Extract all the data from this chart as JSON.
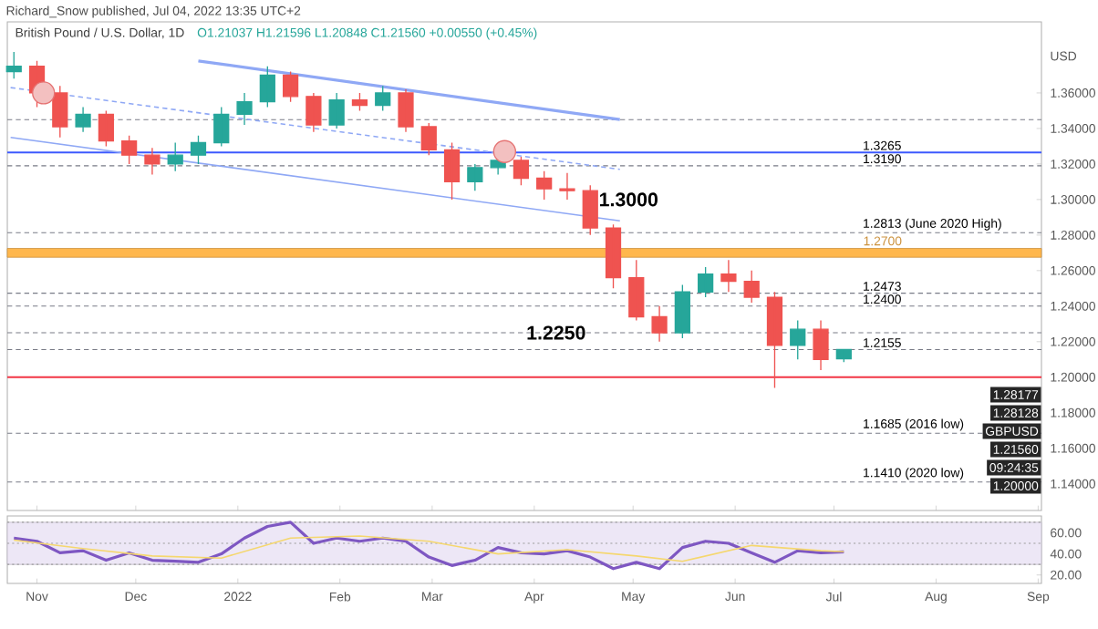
{
  "chart_data": [
    {
      "type": "candlestick",
      "title": "British Pound / U.S. Dollar, 1D",
      "subtitle": "O1.21037 H1.21596 L1.20848 C1.21560 +0.00550 (+0.45%)",
      "ylabel": "USD",
      "annotations": [
        "Richard_Snow published, Jul 04, 2022 13:35 UTC+2",
        {
          "text": "1.2250",
          "x": "2022-03-20",
          "y": 1.225
        },
        {
          "text": "1.3000",
          "x": "2022-04-11",
          "y": 1.3
        },
        "1.28177",
        "1.28128",
        "GBPUSD",
        "1.21560",
        "09:24:35",
        "1.20000"
      ],
      "x": [
        "2021-10-25",
        "2021-11-01",
        "2021-11-08",
        "2021-11-15",
        "2021-11-22",
        "2021-11-29",
        "2021-12-06",
        "2021-12-13",
        "2021-12-20",
        "2021-12-27",
        "2022-01-03",
        "2022-01-10",
        "2022-01-17",
        "2022-01-24",
        "2022-01-31",
        "2022-02-07",
        "2022-02-14",
        "2022-02-21",
        "2022-02-28",
        "2022-03-07",
        "2022-03-14",
        "2022-03-21",
        "2022-03-28",
        "2022-04-04",
        "2022-04-11",
        "2022-04-18",
        "2022-04-25",
        "2022-05-02",
        "2022-05-09",
        "2022-05-16",
        "2022-05-23",
        "2022-05-30",
        "2022-06-06",
        "2022-06-13",
        "2022-06-20",
        "2022-06-27",
        "2022-07-04"
      ],
      "ohlc": [
        [
          1.372,
          1.383,
          1.368,
          1.375
        ],
        [
          1.375,
          1.378,
          1.352,
          1.36
        ],
        [
          1.36,
          1.364,
          1.335,
          1.341
        ],
        [
          1.341,
          1.352,
          1.338,
          1.348
        ],
        [
          1.348,
          1.35,
          1.33,
          1.333
        ],
        [
          1.333,
          1.336,
          1.32,
          1.325
        ],
        [
          1.325,
          1.329,
          1.314,
          1.32
        ],
        [
          1.32,
          1.332,
          1.316,
          1.325
        ],
        [
          1.325,
          1.336,
          1.32,
          1.332
        ],
        [
          1.332,
          1.352,
          1.33,
          1.348
        ],
        [
          1.348,
          1.36,
          1.342,
          1.355
        ],
        [
          1.355,
          1.375,
          1.352,
          1.37
        ],
        [
          1.37,
          1.372,
          1.355,
          1.358
        ],
        [
          1.358,
          1.36,
          1.338,
          1.342
        ],
        [
          1.342,
          1.36,
          1.34,
          1.356
        ],
        [
          1.356,
          1.36,
          1.35,
          1.353
        ],
        [
          1.353,
          1.364,
          1.35,
          1.36
        ],
        [
          1.36,
          1.362,
          1.338,
          1.341
        ],
        [
          1.341,
          1.343,
          1.325,
          1.328
        ],
        [
          1.328,
          1.332,
          1.3,
          1.31
        ],
        [
          1.31,
          1.32,
          1.305,
          1.318
        ],
        [
          1.318,
          1.327,
          1.314,
          1.322
        ],
        [
          1.322,
          1.324,
          1.308,
          1.312
        ],
        [
          1.312,
          1.316,
          1.3,
          1.306
        ],
        [
          1.306,
          1.315,
          1.3,
          1.305
        ],
        [
          1.305,
          1.308,
          1.28,
          1.284
        ],
        [
          1.284,
          1.286,
          1.25,
          1.256
        ],
        [
          1.256,
          1.266,
          1.232,
          1.234
        ],
        [
          1.234,
          1.24,
          1.22,
          1.225
        ],
        [
          1.225,
          1.252,
          1.222,
          1.248
        ],
        [
          1.248,
          1.262,
          1.245,
          1.258
        ],
        [
          1.258,
          1.266,
          1.248,
          1.254
        ],
        [
          1.254,
          1.26,
          1.242,
          1.245
        ],
        [
          1.245,
          1.248,
          1.194,
          1.218
        ],
        [
          1.218,
          1.232,
          1.21,
          1.227
        ],
        [
          1.227,
          1.232,
          1.204,
          1.21
        ],
        [
          1.21037,
          1.21596,
          1.20848,
          1.2156
        ]
      ],
      "series": [
        {
          "type": "line",
          "color": "#8fa8f5",
          "x": [
            "2021-12-20",
            "2022-04-27"
          ],
          "values": [
            1.378,
            1.345
          ]
        },
        {
          "type": "line",
          "color": "#8fa8f5",
          "x": [
            "2021-10-24",
            "2022-04-27"
          ],
          "values": [
            1.335,
            1.288
          ]
        },
        {
          "type": "line",
          "color": "#8fa8f5",
          "line_style": "dashed",
          "x": [
            "2021-10-24",
            "2022-04-27"
          ],
          "values": [
            1.363,
            1.317
          ]
        },
        {
          "type": "scatter",
          "color": "#e57373",
          "marker": "circle",
          "x": [
            "2021-11-03",
            "2022-03-23"
          ],
          "values": [
            1.36,
            1.327
          ]
        }
      ],
      "ref_lines": [
        {
          "axis": "y",
          "value": 1.345,
          "color": "#787b86",
          "line_style": "dashed"
        },
        {
          "axis": "y",
          "value": 1.3265,
          "label": "1.3265",
          "color": "#3d5afe",
          "line_style": "solid"
        },
        {
          "axis": "y",
          "value": 1.319,
          "label": "1.3190",
          "color": "#787b86",
          "line_style": "dashed"
        },
        {
          "axis": "y",
          "value": 1.2813,
          "label": "1.2813 (June 2020 High)",
          "color": "#787b86",
          "line_style": "dashed"
        },
        {
          "axis": "y",
          "value": 1.2473,
          "label": "1.2473",
          "color": "#787b86",
          "line_style": "dashed"
        },
        {
          "axis": "y",
          "value": 1.24,
          "label": "1.2400",
          "color": "#787b86",
          "line_style": "dashed"
        },
        {
          "axis": "y",
          "value": 1.225,
          "color": "#787b86",
          "line_style": "dashed"
        },
        {
          "axis": "y",
          "value": 1.2155,
          "label": "1.2155",
          "color": "#787b86",
          "line_style": "dashed"
        },
        {
          "axis": "y",
          "value": 1.2,
          "color": "#f23645",
          "line_style": "solid"
        },
        {
          "axis": "y",
          "value": 1.1685,
          "label": "1.1685 (2016 low)",
          "color": "#787b86",
          "line_style": "dashed"
        },
        {
          "axis": "y",
          "value": 1.141,
          "label": "1.1410 (2020 low)",
          "color": "#787b86",
          "line_style": "dashed"
        }
      ],
      "bands": [
        {
          "axis": "y",
          "from": 1.2675,
          "to": 1.2725,
          "label": "1.2700",
          "color": "#ffb74d"
        }
      ],
      "xlim": [
        "2021-10-23",
        "2022-09-02"
      ],
      "ylim": [
        1.125,
        1.4
      ],
      "xticks": [
        {
          "value": "2021-11-01",
          "label": null
        },
        {
          "value": "2021-12-01",
          "label": null
        },
        {
          "value": "2022-01-01",
          "label": null
        },
        {
          "value": "2022-02-01",
          "label": null
        },
        {
          "value": "2022-03-01",
          "label": null
        },
        {
          "value": "2022-04-01",
          "label": null
        },
        {
          "value": "2022-05-01",
          "label": null
        },
        {
          "value": "2022-06-01",
          "label": null
        },
        {
          "value": "2022-07-01",
          "label": null
        },
        {
          "value": "2022-08-01",
          "label": null
        },
        {
          "value": "2022-09-01",
          "label": null
        }
      ],
      "yticks": [
        {
          "value": 1.14,
          "label": "1.14000"
        },
        {
          "value": 1.16,
          "label": "1.16000"
        },
        {
          "value": 1.18,
          "label": "1.18000"
        },
        {
          "value": 1.2,
          "label": "1.20000"
        },
        {
          "value": 1.22,
          "label": "1.22000"
        },
        {
          "value": 1.24,
          "label": "1.24000"
        },
        {
          "value": 1.26,
          "label": "1.26000"
        },
        {
          "value": 1.28,
          "label": "1.28000"
        },
        {
          "value": 1.3,
          "label": "1.30000"
        },
        {
          "value": 1.32,
          "label": "1.32000"
        },
        {
          "value": 1.34,
          "label": "1.34000"
        },
        {
          "value": 1.36,
          "label": "1.36000"
        }
      ],
      "tick_labels": "y"
    },
    {
      "type": "line",
      "x": [
        "2021-10-25",
        "2021-11-01",
        "2021-11-08",
        "2021-11-15",
        "2021-11-22",
        "2021-11-29",
        "2021-12-06",
        "2021-12-13",
        "2021-12-20",
        "2021-12-27",
        "2022-01-03",
        "2022-01-10",
        "2022-01-17",
        "2022-01-24",
        "2022-01-31",
        "2022-02-07",
        "2022-02-14",
        "2022-02-21",
        "2022-02-28",
        "2022-03-07",
        "2022-03-14",
        "2022-03-21",
        "2022-03-28",
        "2022-04-04",
        "2022-04-11",
        "2022-04-18",
        "2022-04-25",
        "2022-05-02",
        "2022-05-09",
        "2022-05-16",
        "2022-05-23",
        "2022-05-30",
        "2022-06-06",
        "2022-06-13",
        "2022-06-20",
        "2022-06-27",
        "2022-07-04"
      ],
      "series": [
        {
          "color": "#7e57c2",
          "values": [
            55,
            52,
            41,
            43,
            34,
            41,
            34,
            33,
            32,
            40,
            55,
            66,
            70,
            50,
            55,
            52,
            55,
            52,
            37,
            29,
            34,
            46,
            41,
            40,
            43,
            37,
            26,
            32,
            26,
            46,
            52,
            50,
            41,
            32,
            43,
            41,
            42
          ]
        },
        {
          "color": "#f5d76e",
          "x": [
            "2021-10-25",
            "2021-11-15",
            "2021-12-06",
            "2021-12-27",
            "2022-01-17",
            "2022-02-07",
            "2022-02-28",
            "2022-03-21",
            "2022-04-11",
            "2022-05-02",
            "2022-05-16",
            "2022-06-06",
            "2022-06-27",
            "2022-07-04"
          ],
          "values": [
            53,
            45,
            38,
            36,
            55,
            57,
            52,
            40,
            44,
            38,
            33,
            48,
            43,
            42
          ]
        }
      ],
      "bands": [
        {
          "axis": "y",
          "from": 30,
          "to": 70,
          "color": "#ede7f6"
        }
      ],
      "ref_lines": [
        {
          "axis": "y",
          "value": 70,
          "color": "#9e9e9e",
          "line_style": "dotted"
        },
        {
          "axis": "y",
          "value": 50,
          "color": "#9e9e9e",
          "line_style": "dotted"
        },
        {
          "axis": "y",
          "value": 30,
          "color": "#9e9e9e",
          "line_style": "dotted"
        }
      ],
      "xlim": [
        "2021-10-23",
        "2022-09-02"
      ],
      "ylim": [
        12,
        76
      ],
      "xticks": [
        {
          "value": "2021-11-01",
          "label": "Nov"
        },
        {
          "value": "2021-12-01",
          "label": "Dec"
        },
        {
          "value": "2022-01-01",
          "label": "2022"
        },
        {
          "value": "2022-02-01",
          "label": "Feb"
        },
        {
          "value": "2022-03-01",
          "label": "Mar"
        },
        {
          "value": "2022-04-01",
          "label": "Apr"
        },
        {
          "value": "2022-05-01",
          "label": "May"
        },
        {
          "value": "2022-06-01",
          "label": "Jun"
        },
        {
          "value": "2022-07-01",
          "label": "Jul"
        },
        {
          "value": "2022-08-01",
          "label": "Aug"
        },
        {
          "value": "2022-09-01",
          "label": "Sep"
        }
      ],
      "yticks": [
        {
          "value": 20,
          "label": "20.00"
        },
        {
          "value": 40,
          "label": "40.00"
        },
        {
          "value": 60,
          "label": "60.00"
        }
      ]
    }
  ]
}
